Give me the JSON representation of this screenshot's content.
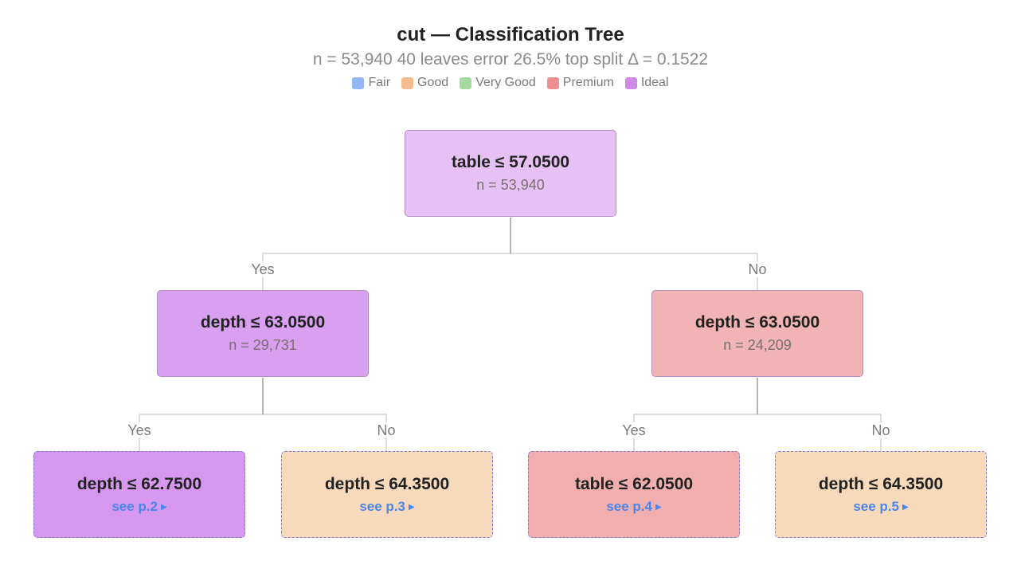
{
  "header": {
    "title": "cut — Classification Tree",
    "subtitle": "n = 53,940  40 leaves  error 26.5%  top split Δ = 0.1522"
  },
  "legend": [
    {
      "label": "Fair",
      "color": "#93b7f7"
    },
    {
      "label": "Good",
      "color": "#f2bd8d"
    },
    {
      "label": "Very Good",
      "color": "#a6dba0"
    },
    {
      "label": "Premium",
      "color": "#ec8f8f"
    },
    {
      "label": "Ideal",
      "color": "#cf8ae8"
    }
  ],
  "tree": {
    "root": {
      "rule": "table ≤ 57.0500",
      "count": "n = 53,940",
      "color": "#e7c1f5"
    },
    "left": {
      "rule": "depth ≤ 63.0500",
      "count": "n = 29,731",
      "color": "#d99ff0"
    },
    "right": {
      "rule": "depth ≤ 63.0500",
      "count": "n = 24,209",
      "color": "#f1b3b3"
    },
    "leaves": [
      {
        "rule": "depth ≤ 62.7500",
        "link": "see p.2",
        "color": "#d698ee"
      },
      {
        "rule": "depth ≤ 64.3500",
        "link": "see p.3",
        "color": "#f7d9bb"
      },
      {
        "rule": "table ≤ 62.0500",
        "link": "see p.4",
        "color": "#f0aeae"
      },
      {
        "rule": "depth ≤ 64.3500",
        "link": "see p.5",
        "color": "#f7d9bb"
      }
    ],
    "edge_labels": {
      "yes": "Yes",
      "no": "No"
    }
  }
}
